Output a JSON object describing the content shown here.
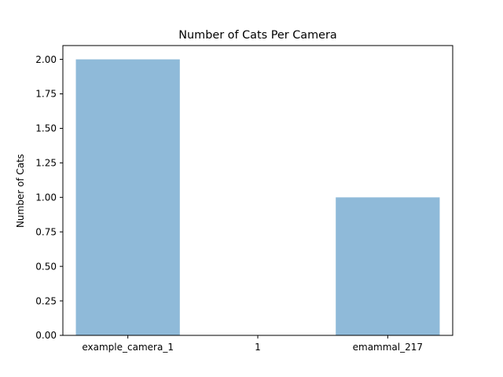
{
  "chart_data": {
    "type": "bar",
    "title": "Number of Cats Per Camera",
    "xlabel": "",
    "ylabel": "Number of Cats",
    "categories": [
      "example_camera_1",
      "1",
      "emammal_217"
    ],
    "values": [
      2.0,
      0.0,
      1.0
    ],
    "ylim": [
      0,
      2.1
    ],
    "yticks": [
      "0.00",
      "0.25",
      "0.50",
      "0.75",
      "1.00",
      "1.25",
      "1.50",
      "1.75",
      "2.00"
    ],
    "grid": false,
    "legend": "none",
    "bar_color": "#8fbad9"
  }
}
